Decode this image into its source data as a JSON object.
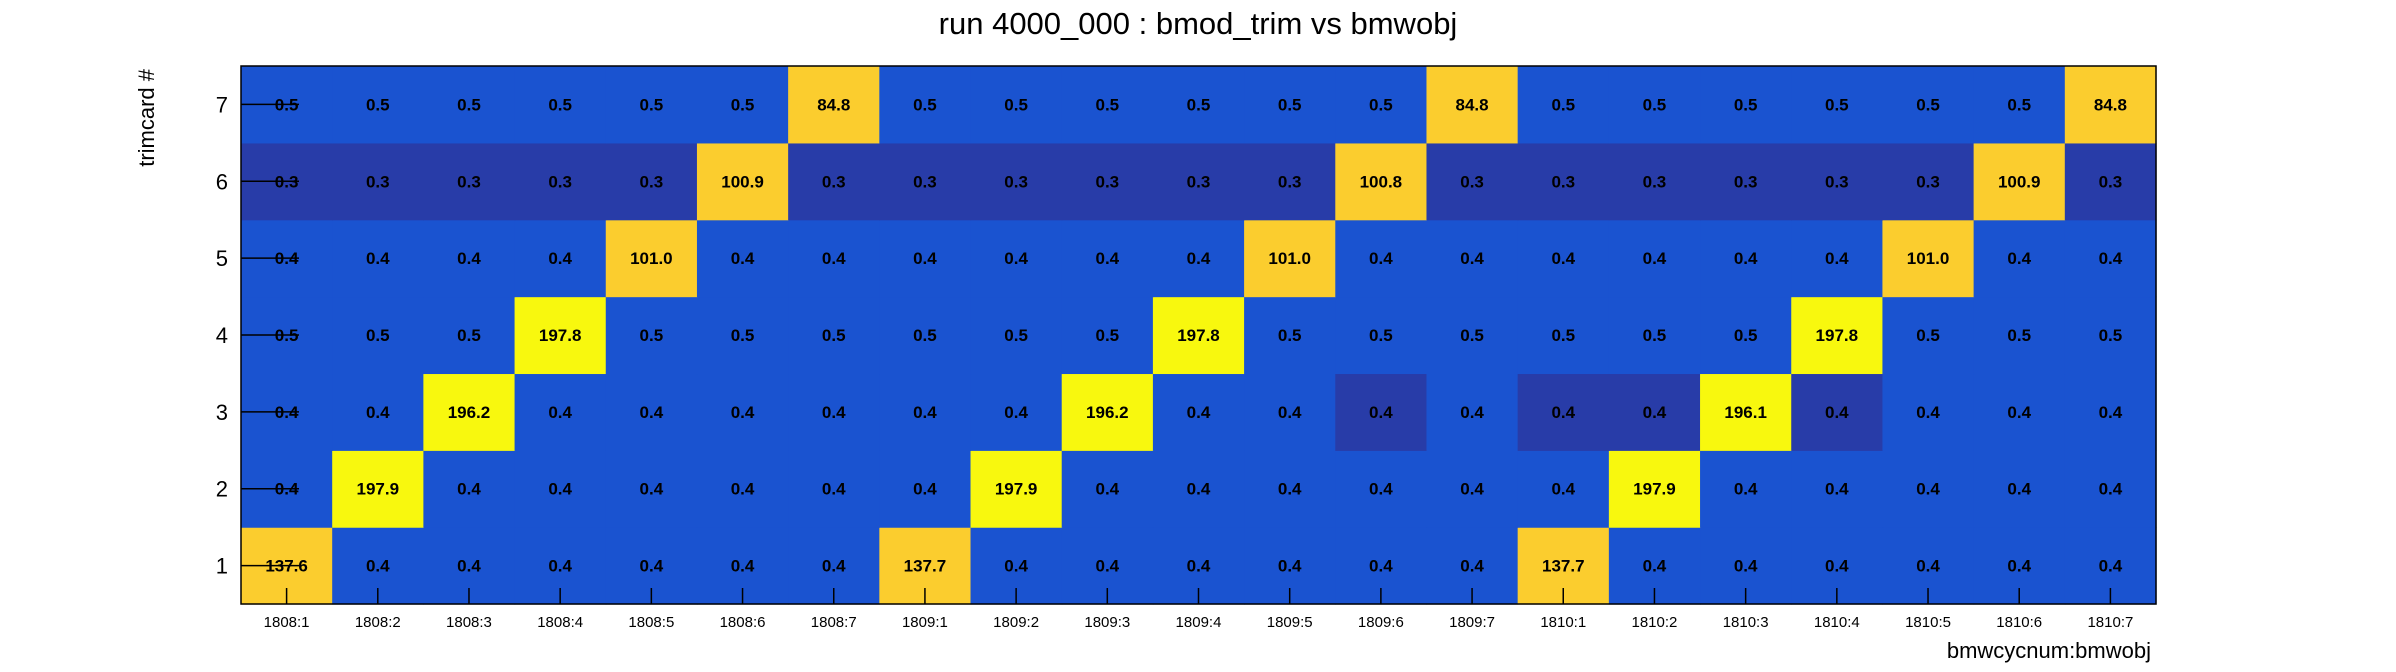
{
  "chart_data": {
    "type": "heatmap",
    "title": "run 4000_000 : bmod_trim vs bmwobj",
    "xlabel": "bmwcycnum:bmwobj",
    "ylabel": "trimcard #",
    "x_categories": [
      "1808:1",
      "1808:2",
      "1808:3",
      "1808:4",
      "1808:5",
      "1808:6",
      "1808:7",
      "1809:1",
      "1809:2",
      "1809:3",
      "1809:4",
      "1809:5",
      "1809:6",
      "1809:7",
      "1810:1",
      "1810:2",
      "1810:3",
      "1810:4",
      "1810:5",
      "1810:6",
      "1810:7"
    ],
    "y_categories": [
      "1",
      "2",
      "3",
      "4",
      "5",
      "6",
      "7"
    ],
    "values": [
      [
        137.6,
        0.4,
        0.4,
        0.4,
        0.4,
        0.4,
        0.4,
        137.7,
        0.4,
        0.4,
        0.4,
        0.4,
        0.4,
        0.4,
        137.7,
        0.4,
        0.4,
        0.4,
        0.4,
        0.4,
        0.4
      ],
      [
        0.4,
        197.9,
        0.4,
        0.4,
        0.4,
        0.4,
        0.4,
        0.4,
        197.9,
        0.4,
        0.4,
        0.4,
        0.4,
        0.4,
        0.4,
        197.9,
        0.4,
        0.4,
        0.4,
        0.4,
        0.4
      ],
      [
        0.4,
        0.4,
        196.2,
        0.4,
        0.4,
        0.4,
        0.4,
        0.4,
        0.4,
        196.2,
        0.4,
        0.4,
        0.4,
        0.4,
        0.4,
        0.4,
        196.1,
        0.4,
        0.4,
        0.4,
        0.4
      ],
      [
        0.5,
        0.5,
        0.5,
        197.8,
        0.5,
        0.5,
        0.5,
        0.5,
        0.5,
        0.5,
        197.8,
        0.5,
        0.5,
        0.5,
        0.5,
        0.5,
        0.5,
        197.8,
        0.5,
        0.5,
        0.5
      ],
      [
        0.4,
        0.4,
        0.4,
        0.4,
        101.0,
        0.4,
        0.4,
        0.4,
        0.4,
        0.4,
        0.4,
        101.0,
        0.4,
        0.4,
        0.4,
        0.4,
        0.4,
        0.4,
        101.0,
        0.4,
        0.4
      ],
      [
        0.3,
        0.3,
        0.3,
        0.3,
        0.3,
        100.9,
        0.3,
        0.3,
        0.3,
        0.3,
        0.3,
        0.3,
        100.8,
        0.3,
        0.3,
        0.3,
        0.3,
        0.3,
        0.3,
        100.9,
        0.3
      ],
      [
        0.5,
        0.5,
        0.5,
        0.5,
        0.5,
        0.5,
        84.8,
        0.5,
        0.5,
        0.5,
        0.5,
        0.5,
        0.5,
        84.8,
        0.5,
        0.5,
        0.5,
        0.5,
        0.5,
        0.5,
        84.8
      ]
    ],
    "dark_cells": [
      [
        2,
        12
      ],
      [
        2,
        14
      ],
      [
        2,
        15
      ],
      [
        2,
        17
      ]
    ],
    "colors": {
      "background": "#ffffff",
      "cell_default": "#1a53d0",
      "cell_low": "#283ca8",
      "cell_high": "#f8f80e",
      "cell_mid": "#fbcd2e"
    }
  }
}
